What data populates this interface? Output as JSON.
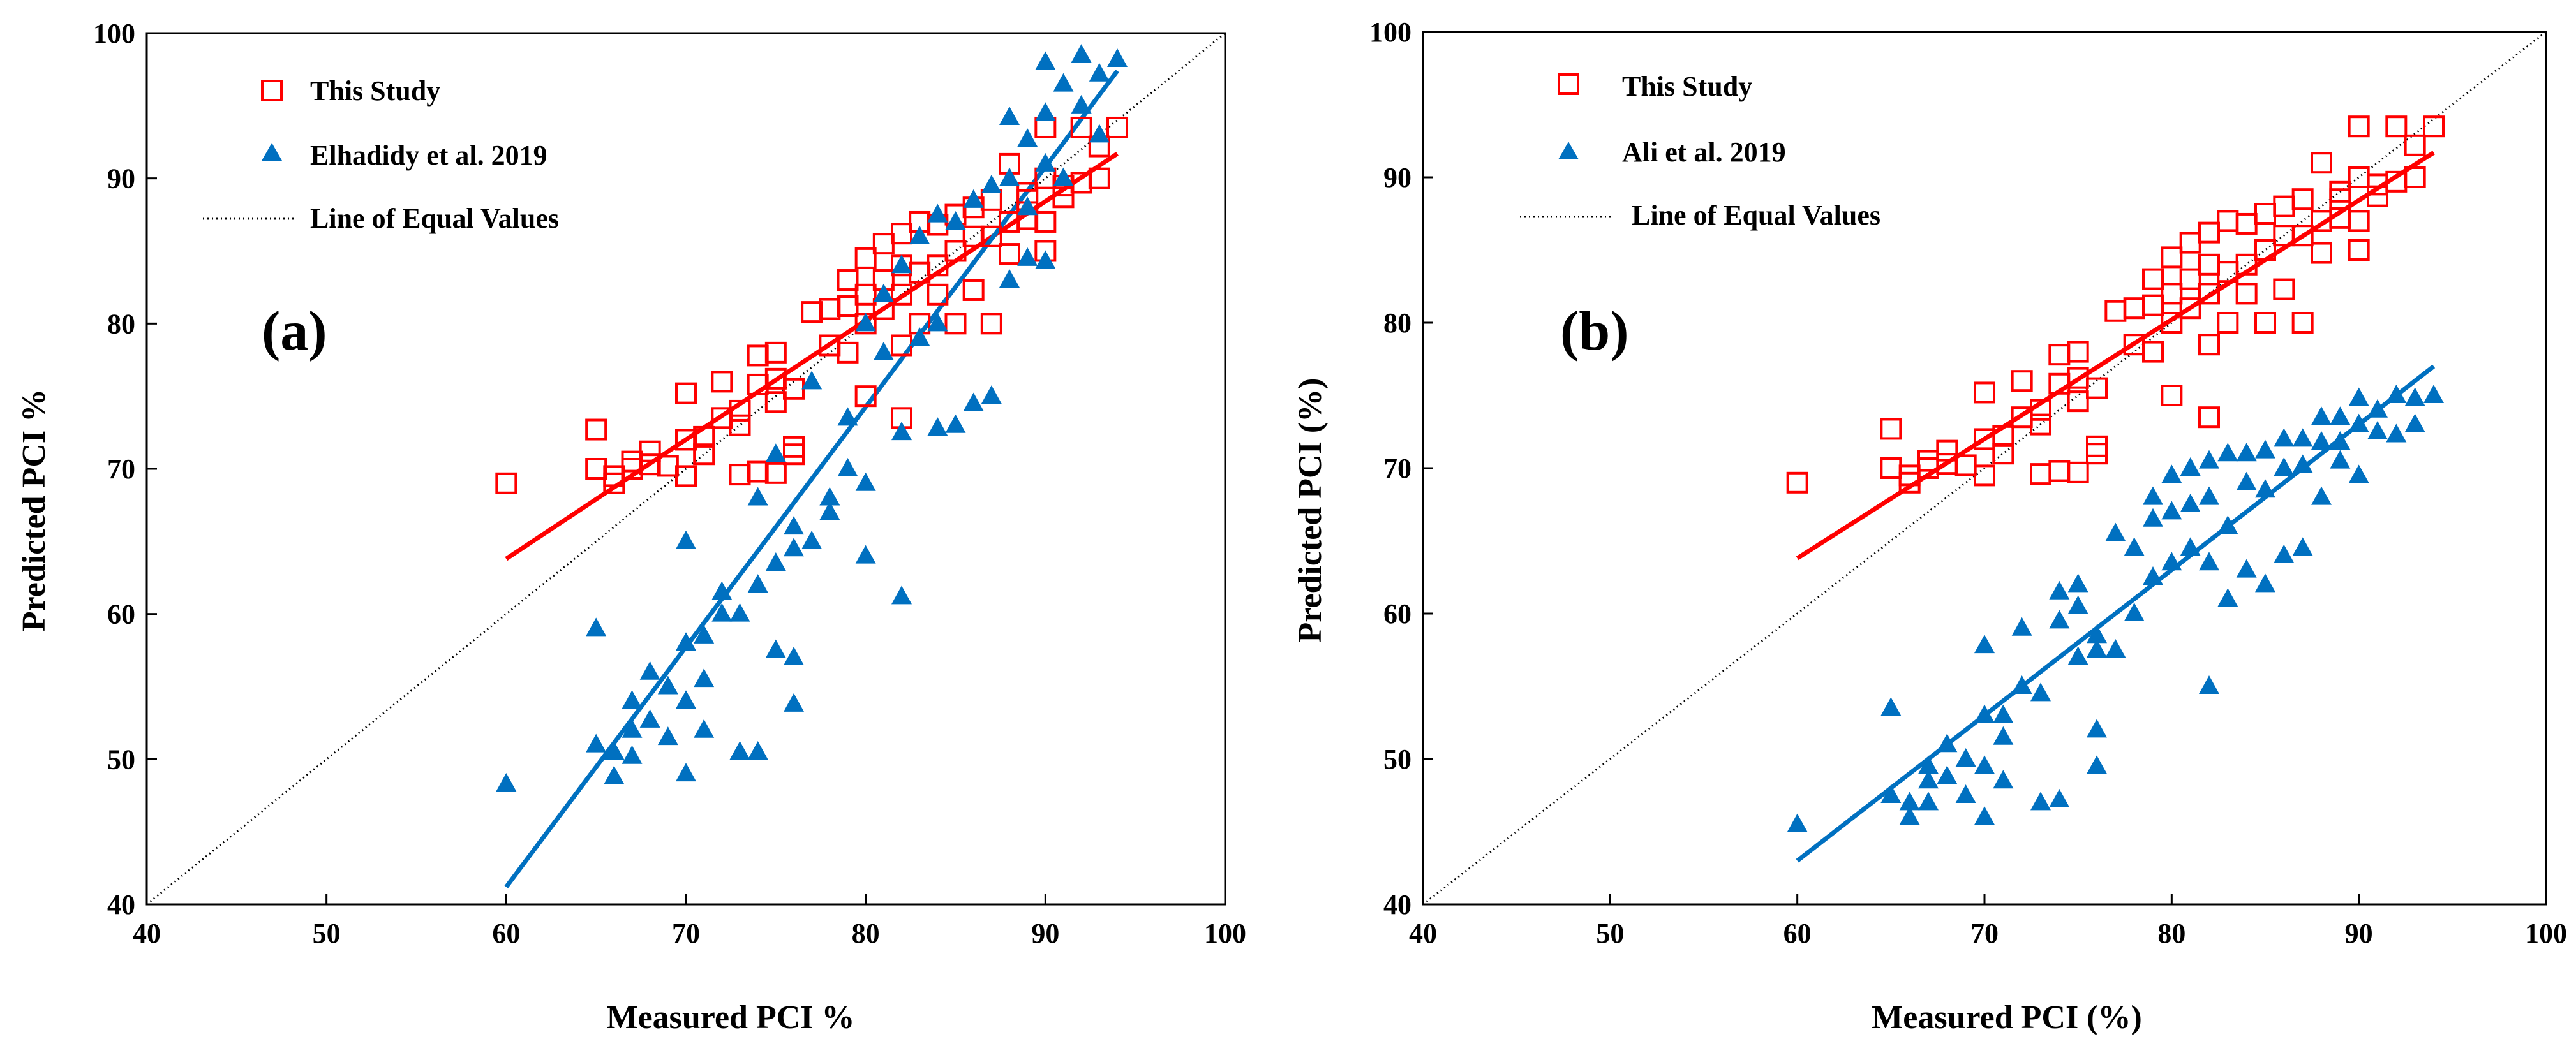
{
  "colors": {
    "study": "#ff0000",
    "other": "#0070c0",
    "axis": "#000000"
  },
  "chart_data": [
    {
      "type": "scatter",
      "panel_label": "(a)",
      "xlabel": "Measured PCI %",
      "ylabel": "Predicted PCI %",
      "xlim": [
        40,
        100
      ],
      "ylim": [
        40,
        100
      ],
      "xticks": [
        "40",
        "50",
        "60",
        "70",
        "80",
        "90",
        "100"
      ],
      "yticks": [
        "40",
        "50",
        "60",
        "70",
        "80",
        "90",
        "100"
      ],
      "legend": {
        "placement": "top-left",
        "entries": [
          "This Study",
          "Elhadidy et al. 2019",
          "Line of Equal Values"
        ]
      },
      "series": [
        {
          "name": "This Study",
          "marker": "square-open",
          "color": "#ff0000",
          "x": [
            60,
            65,
            65,
            66,
            66,
            67,
            67,
            68,
            68,
            69,
            70,
            70,
            70,
            71,
            71,
            72,
            72,
            73,
            73,
            74,
            74,
            75,
            75,
            75,
            76,
            76,
            77,
            78,
            78,
            79,
            79,
            79,
            80,
            80,
            80,
            80,
            81,
            81,
            81,
            82,
            82,
            82,
            82,
            83,
            83,
            83,
            84,
            84,
            84,
            85,
            85,
            85,
            86,
            86,
            86,
            87,
            87,
            87,
            88,
            88,
            88,
            89,
            89,
            89,
            90,
            90,
            90,
            90,
            91,
            91,
            92,
            92,
            93,
            93,
            94,
            75,
            76,
            82,
            73,
            74
          ],
          "y": [
            69,
            72.7,
            70,
            69,
            69.5,
            70.5,
            70,
            71.2,
            70.3,
            70.2,
            75.2,
            72,
            69.5,
            72.2,
            71,
            76,
            73.5,
            74,
            73,
            77.8,
            75.8,
            78,
            76.2,
            74.6,
            75.5,
            71,
            80.8,
            81,
            78.5,
            83,
            81.2,
            78,
            84.5,
            82,
            80,
            75,
            85.5,
            83,
            81,
            86.2,
            84,
            82,
            73.5,
            87,
            83.5,
            80,
            86.8,
            84,
            82,
            87.5,
            85,
            80,
            88,
            86,
            82.3,
            88.5,
            86,
            80,
            91,
            87,
            84.8,
            89,
            87.2,
            88.5,
            93.5,
            90,
            87,
            85,
            89.5,
            88.7,
            93.5,
            89.7,
            92.2,
            90,
            93.5,
            69.7,
            71.5,
            78.5,
            69.6,
            69.8
          ]
        },
        {
          "name": "Elhadidy et al. 2019",
          "marker": "triangle-filled",
          "color": "#0070c0",
          "x": [
            60,
            65,
            65,
            66,
            66,
            67,
            67,
            67,
            68,
            68,
            69,
            69,
            70,
            70,
            70,
            70,
            71,
            71,
            71,
            72,
            72,
            73,
            73,
            74,
            74,
            74,
            75,
            75,
            76,
            76,
            76,
            77,
            78,
            78,
            79,
            79,
            80,
            80,
            80,
            81,
            81,
            82,
            82,
            82,
            83,
            83,
            84,
            84,
            84,
            85,
            85,
            86,
            86,
            87,
            87,
            88,
            88,
            88,
            89,
            89,
            89,
            90,
            90,
            90,
            90,
            91,
            91,
            92,
            92,
            93,
            93,
            94,
            75,
            76,
            77
          ],
          "y": [
            48.3,
            59,
            51,
            48.8,
            50.5,
            54,
            52,
            50.2,
            56,
            52.7,
            55,
            51.5,
            65,
            58,
            54,
            49,
            58.5,
            55.5,
            52,
            61.5,
            60,
            60,
            50.5,
            68,
            62,
            50.5,
            71,
            57.5,
            66,
            57,
            53.8,
            76,
            68,
            67,
            73.5,
            70,
            80,
            69,
            64,
            82,
            78,
            84,
            72.5,
            61.2,
            86,
            79,
            87.5,
            80,
            72.8,
            87,
            73,
            88.5,
            74.5,
            89.5,
            75,
            94.2,
            90,
            83,
            92.7,
            88,
            84.5,
            98,
            94.5,
            91,
            84.3,
            96.5,
            90,
            98.5,
            95,
            97.2,
            93,
            98.2,
            63.5,
            64.5,
            65
          ]
        },
        {
          "name": "Line of Equal Values",
          "style": "dotted",
          "color": "#000000",
          "x": [
            40,
            100
          ],
          "y": [
            40,
            100
          ]
        },
        {
          "name": "This Study trend",
          "style": "solid",
          "color": "#ff0000",
          "x": [
            60,
            94
          ],
          "y": [
            63.8,
            91.7
          ]
        },
        {
          "name": "Elhadidy et al. 2019 trend",
          "style": "solid",
          "color": "#0070c0",
          "x": [
            60,
            94
          ],
          "y": [
            41.2,
            97.4
          ]
        }
      ]
    },
    {
      "type": "scatter",
      "panel_label": "(b)",
      "xlabel": "Measured PCI (%)",
      "ylabel": "Predicted PCI (%)",
      "xlim": [
        40,
        100
      ],
      "ylim": [
        40,
        100
      ],
      "xticks": [
        "40",
        "50",
        "60",
        "70",
        "80",
        "90",
        "100"
      ],
      "yticks": [
        "40",
        "50",
        "60",
        "70",
        "80",
        "90",
        "100"
      ],
      "legend": {
        "placement": "top-left",
        "entries": [
          "This Study",
          "Ali et al. 2019",
          "Line of Equal Values"
        ]
      },
      "series": [
        {
          "name": "This Study",
          "marker": "square-open",
          "color": "#ff0000",
          "x": [
            60,
            65,
            65,
            66,
            66,
            67,
            67,
            68,
            68,
            69,
            70,
            70,
            70,
            71,
            71,
            72,
            72,
            73,
            73,
            74,
            74,
            75,
            75,
            75,
            76,
            76,
            77,
            78,
            78,
            79,
            79,
            79,
            80,
            80,
            80,
            80,
            81,
            81,
            81,
            82,
            82,
            82,
            82,
            83,
            83,
            83,
            84,
            84,
            84,
            85,
            85,
            85,
            86,
            86,
            86,
            87,
            87,
            87,
            88,
            88,
            88,
            89,
            89,
            89,
            90,
            90,
            90,
            90,
            91,
            91,
            92,
            92,
            93,
            93,
            94,
            75,
            76,
            82,
            73,
            74
          ],
          "y": [
            69,
            72.7,
            70,
            69,
            69.5,
            70.5,
            70,
            71.2,
            70.3,
            70.2,
            75.2,
            72,
            69.5,
            72.2,
            71,
            76,
            73.5,
            74,
            73,
            77.8,
            75.8,
            78,
            76.2,
            74.6,
            75.5,
            71,
            80.8,
            81,
            78.5,
            83,
            81.2,
            78,
            84.5,
            82,
            80,
            75,
            85.5,
            83,
            81,
            86.2,
            84,
            82,
            73.5,
            87,
            83.5,
            80,
            86.8,
            84,
            82,
            87.5,
            85,
            80,
            88,
            86,
            82.3,
            88.5,
            86,
            80,
            91,
            87,
            84.8,
            89,
            87.2,
            88.5,
            93.5,
            90,
            87,
            85,
            89.5,
            88.7,
            93.5,
            89.7,
            92.2,
            90,
            93.5,
            69.7,
            71.5,
            78.5,
            69.6,
            69.8
          ]
        },
        {
          "name": "Ali et al. 2019",
          "marker": "triangle-filled",
          "color": "#0070c0",
          "x": [
            60,
            65,
            65,
            66,
            66,
            67,
            67,
            67,
            68,
            68,
            69,
            69,
            70,
            70,
            70,
            70,
            71,
            71,
            71,
            72,
            72,
            73,
            73,
            74,
            74,
            74,
            75,
            75,
            76,
            76,
            76,
            77,
            78,
            78,
            79,
            79,
            79,
            80,
            80,
            80,
            81,
            81,
            81,
            82,
            82,
            82,
            82,
            83,
            83,
            83,
            84,
            84,
            84,
            85,
            85,
            85,
            86,
            86,
            86,
            87,
            87,
            87,
            88,
            88,
            88,
            89,
            89,
            89,
            90,
            90,
            90,
            91,
            91,
            92,
            92,
            93,
            93,
            94,
            75,
            76,
            77
          ],
          "y": [
            45.5,
            53.5,
            47.5,
            47,
            46,
            49.5,
            48.5,
            47,
            51,
            48.8,
            50,
            47.5,
            57.8,
            53,
            49.5,
            46,
            53,
            51.5,
            48.5,
            59,
            55,
            54.5,
            47,
            61.5,
            59.5,
            47.2,
            62,
            57,
            58.5,
            52,
            49.5,
            65.5,
            64.5,
            60,
            68,
            66.5,
            62.5,
            69.5,
            67,
            63.5,
            70,
            67.5,
            64.5,
            70.5,
            68,
            63.5,
            55,
            71,
            66,
            61,
            71,
            69,
            63,
            71.2,
            68.5,
            62,
            72,
            70,
            64,
            72,
            70.2,
            64.5,
            73.5,
            71.8,
            68,
            73.5,
            71.8,
            70.5,
            74.8,
            73,
            69.5,
            74,
            72.5,
            75,
            72.3,
            74.8,
            73,
            75,
            60.5,
            57.5,
            57.5
          ]
        },
        {
          "name": "Line of Equal Values",
          "style": "dotted",
          "color": "#000000",
          "x": [
            40,
            100
          ],
          "y": [
            40,
            100
          ]
        },
        {
          "name": "This Study trend",
          "style": "solid",
          "color": "#ff0000",
          "x": [
            60,
            94
          ],
          "y": [
            63.8,
            91.7
          ]
        },
        {
          "name": "Ali et al. 2019 trend",
          "style": "solid",
          "color": "#0070c0",
          "x": [
            60,
            94
          ],
          "y": [
            43,
            77
          ]
        }
      ]
    }
  ]
}
